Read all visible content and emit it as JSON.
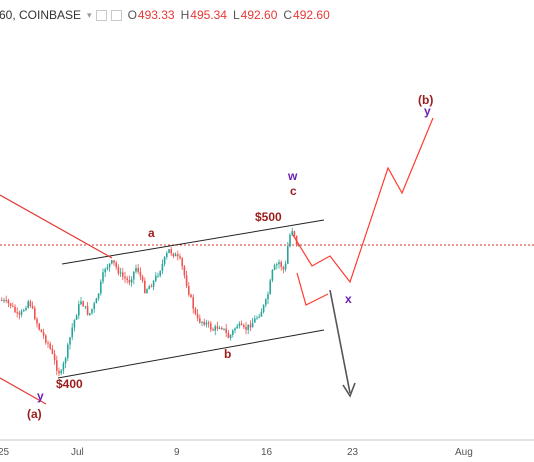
{
  "header": {
    "symbol": "60, COINBASE",
    "open_key": "O",
    "open": "493.33",
    "high_key": "H",
    "high": "495.34",
    "low_key": "L",
    "low": "492.60",
    "close_key": "C",
    "close": "492.60"
  },
  "colors": {
    "bull": "#26a69a",
    "bear": "#ef5350",
    "projection": "#ff3b30",
    "channel": "#222222",
    "wave_red": "#9c1c1c",
    "wave_purple": "#6a1fb0",
    "arrow": "#555555",
    "price_line": "#d32f2f"
  },
  "annotations": {
    "price_400": "$400",
    "price_500": "$500",
    "wave_a": "a",
    "wave_b": "b",
    "wave_c": "c",
    "wave_w": "w",
    "wave_x": "x",
    "wave_y_top": "y",
    "wave_y_bottom": "y",
    "wave_a_paren": "(a)",
    "wave_b_paren": "(b)"
  },
  "x_axis": {
    "ticks": [
      "25",
      "Jul",
      "9",
      "16",
      "23",
      "Aug"
    ]
  }
}
